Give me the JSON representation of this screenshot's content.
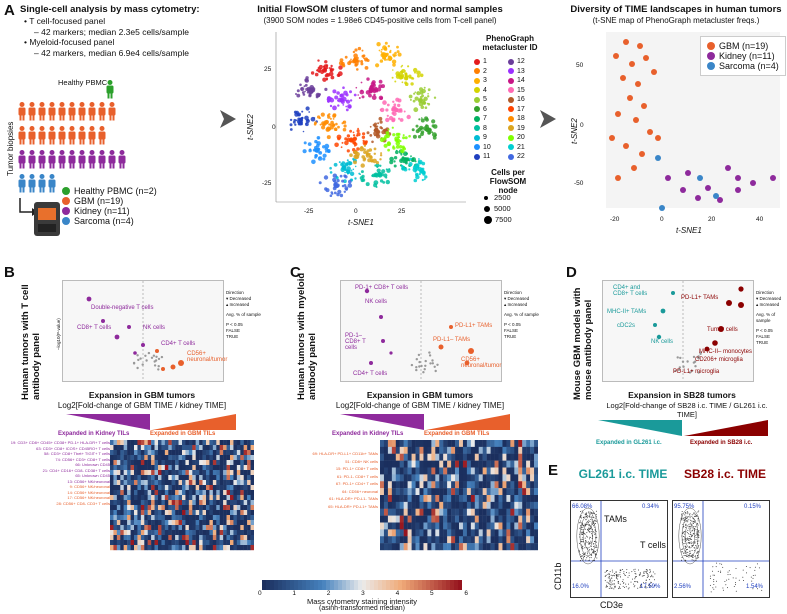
{
  "panelA": {
    "letter": "A",
    "title": "Single-cell analysis by mass cytometry:",
    "bullets": [
      "T cell-focused panel",
      "– 42 markers; median 2.3e5 cells/sample",
      "Myeloid-focused panel",
      "– 42 markers, median 6.9e4 cells/sample"
    ],
    "healthy_label": "Healthy PBMC",
    "tumor_label": "Tumor biopsies",
    "legend": [
      {
        "label": "Healthy PBMC (n=2)",
        "color": "#2ca02c"
      },
      {
        "label": "GBM (n=19)",
        "color": "#e8602c"
      },
      {
        "label": "Kidney (n=11)",
        "color": "#8e2a9c"
      },
      {
        "label": "Sarcoma (n=4)",
        "color": "#3a86c8"
      }
    ]
  },
  "tsne": {
    "title": "Initial FlowSOM clusters of tumor and normal samples",
    "subtitle": "(3900 SOM nodes = 1.98e6 CD45-positive cells from T-cell panel)",
    "xlabel": "t-SNE1",
    "ylabel": "t-SNE2",
    "xticks": [
      "-25",
      "0",
      "25"
    ],
    "yticks": [
      "25",
      "0",
      "-25"
    ],
    "legend_title": "PhenoGraph metacluster ID",
    "ids": [
      "1",
      "2",
      "3",
      "4",
      "5",
      "6",
      "7",
      "8",
      "9",
      "10",
      "11",
      "12",
      "13",
      "14",
      "15",
      "16",
      "17",
      "18",
      "19",
      "20",
      "21",
      "22"
    ],
    "colors": [
      "#e41a1c",
      "#ff7f00",
      "#ffb000",
      "#d4d400",
      "#9acd32",
      "#33a02c",
      "#00b060",
      "#00c0a0",
      "#00bcd4",
      "#1e90ff",
      "#1f3fbf",
      "#6a3d9a",
      "#9b30ff",
      "#c71585",
      "#ff69b4",
      "#b15928",
      "#ff4500",
      "#ff8c00",
      "#daa520",
      "#7fff00",
      "#00ced1",
      "#4169e1"
    ],
    "size_title": "Cells per FlowSOM node",
    "sizes": [
      "2500",
      "5000",
      "7500"
    ]
  },
  "diversity": {
    "title": "Diversity of TIME landscapes in human tumors",
    "subtitle": "(t-SNE map of PhenoGraph metacluster freqs.)",
    "xlabel": "t-SNE1",
    "ylabel": "t-SNE2",
    "xticks": [
      "-20",
      "0",
      "20",
      "40"
    ],
    "yticks": [
      "50",
      "0",
      "-50"
    ],
    "legend": [
      {
        "label": "GBM (n=19)",
        "color": "#e8602c"
      },
      {
        "label": "Kidney (n=11)",
        "color": "#8e2a9c"
      },
      {
        "label": "Sarcoma (n=4)",
        "color": "#3a86c8"
      }
    ]
  },
  "panelB": {
    "letter": "B",
    "side_label": "Human tumors with T cell antibody panel",
    "labels": [
      "Double-negative T cells",
      "CD8+ T cells",
      "NK cells",
      "CD4+ T cells",
      "CD56+ neuronal/tumor"
    ],
    "xaxis": "Expansion in GBM tumors",
    "xaxis_sub": "Log2[Fold-change of GBM TIME / kidney TIME]",
    "left_tri": "Expanded in Kidney TILs",
    "right_tri": "Expanded in GBM TILs",
    "rows": [
      "19: CD3+ CD8+ CD45+ CD38+ PD-1+ HLA-DR+ T cells",
      "63: CD3+ CD8+ ICOS+ CD45RO+ T cells",
      "58: CD3+ CD8+ Tbet+ TIGIT+ T cells",
      "74: CD56+ CD3+ CD8+ T cells",
      "66: Unknown CD45",
      "21: CD4+ CD16+ CD8- CD38+ T cells",
      "65: Unknown CD45",
      "13: CD56+ NK/neuronal",
      "9: CD56+ NK/neuronal",
      "14: CD56+ NK/neuronal",
      "17: CD56+ NK/neuronal",
      "28: CD56+ CD8- CD3+ T cells"
    ]
  },
  "panelC": {
    "letter": "C",
    "side_label": "Human tumors with myeloid antibody panel",
    "labels": [
      "PD-1+ CD8+ T cells",
      "NK cells",
      "PD-1– CD8+ T cells",
      "PD-L1+ TAMs",
      "PD-L1– TAMs",
      "CD56+ neuronal/tumor",
      "CD4+ T cells"
    ],
    "xaxis": "Expansion in GBM tumors",
    "xaxis_sub": "Log2[Fold-change of GBM TIME / kidney TIME]",
    "left_tri": "Expanded in Kidney TILs",
    "right_tri": "Expanded in GBM TILs",
    "rows": [
      "69: HLA-DR+ PD-L1+ CD11b+ TAMs",
      "51: CD8+ NK cells",
      "15: PD-1+ CD8+ T cells",
      "61: PD-1- CD8+ T cells",
      "67: PD-1+ CD4+ T cells",
      "64: CD56+ neuronal",
      "61: HLA-DR+ PD-L1- TAMs",
      "65: HLA-DR+ PD-L1+ TAMs"
    ]
  },
  "panelD": {
    "letter": "D",
    "side_label": "Mouse GBM models with mouse antibody panel",
    "labels": [
      "CD4+ and CD8+ T cells",
      "MHC-II+ TAMs",
      "cDC2s",
      "NK cells",
      "PD-L1+ TAMs",
      "Tumor cells",
      "MHC-II– monocytes",
      "CD206+ microglia",
      "PD-L1+ microglia"
    ],
    "xaxis": "Expansion in SB28 tumors",
    "xaxis_sub": "Log2[Fold-change of SB28 i.c. TIME / GL261 i.c. TIME]",
    "left_tri": "Expanded in GL261 i.c.",
    "right_tri": "Expanded in SB28 i.c."
  },
  "colorbar": {
    "ticks": [
      "0",
      "1",
      "2",
      "3",
      "4",
      "5",
      "6"
    ],
    "label": "Mass cytometry staining intensity",
    "sub": "(asinh-transformed median)"
  },
  "panelE": {
    "letter": "E",
    "left_title": "GL261 i.c. TIME",
    "right_title": "SB28 i.c. TIME",
    "left_pct": [
      "66.08%",
      "0.34%",
      "16.0%",
      "17.59%"
    ],
    "right_pct": [
      "95.75%",
      "0.15%",
      "2.56%",
      "1.54%"
    ],
    "tams": "TAMs",
    "tcells": "T cells",
    "ylabel": "CD11b",
    "xlabel": "CD3e"
  },
  "common": {
    "direction": "Direction",
    "decreased": "Decreased",
    "increased": "Increased",
    "avg_pct": "Avg. % of sample",
    "pval": "P < 0.05",
    "false": "FALSE",
    "true": "TRUE",
    "yaxis": "–log10(P-value)"
  }
}
